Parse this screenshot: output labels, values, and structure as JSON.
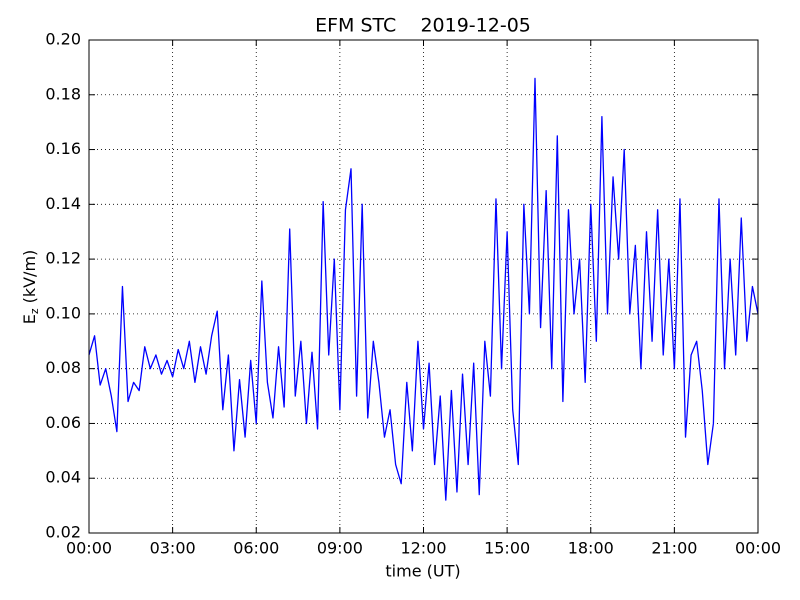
{
  "chart_data": {
    "type": "line",
    "title": "EFM STC    2019-12-05",
    "xlabel": "time (UT)",
    "ylabel": {
      "base": "E",
      "sub": "z",
      "unit": "(kV/m)"
    },
    "grid": true,
    "series": [
      {
        "color": "#0000ff",
        "x": [
          0.0,
          0.2,
          0.4,
          0.6,
          0.8,
          1.0,
          1.2,
          1.4,
          1.6,
          1.8,
          2.0,
          2.2,
          2.4,
          2.6,
          2.8,
          3.0,
          3.2,
          3.4,
          3.6,
          3.8,
          4.0,
          4.2,
          4.4,
          4.6,
          4.8,
          5.0,
          5.2,
          5.4,
          5.6,
          5.8,
          6.0,
          6.2,
          6.4,
          6.6,
          6.8,
          7.0,
          7.2,
          7.4,
          7.6,
          7.8,
          8.0,
          8.2,
          8.4,
          8.6,
          8.8,
          9.0,
          9.2,
          9.4,
          9.6,
          9.8,
          10.0,
          10.2,
          10.4,
          10.6,
          10.8,
          11.0,
          11.2,
          11.4,
          11.6,
          11.8,
          12.0,
          12.2,
          12.4,
          12.6,
          12.8,
          13.0,
          13.2,
          13.4,
          13.6,
          13.8,
          14.0,
          14.2,
          14.4,
          14.6,
          14.8,
          15.0,
          15.2,
          15.4,
          15.6,
          15.8,
          16.0,
          16.2,
          16.4,
          16.6,
          16.8,
          17.0,
          17.2,
          17.4,
          17.6,
          17.8,
          18.0,
          18.2,
          18.4,
          18.6,
          18.8,
          19.0,
          19.2,
          19.4,
          19.6,
          19.8,
          20.0,
          20.2,
          20.4,
          20.6,
          20.8,
          21.0,
          21.2,
          21.4,
          21.6,
          21.8,
          22.0,
          22.2,
          22.4,
          22.6,
          22.8,
          23.0,
          23.2,
          23.4,
          23.6,
          23.8,
          24.0
        ],
        "values": [
          0.085,
          0.092,
          0.074,
          0.08,
          0.07,
          0.057,
          0.11,
          0.068,
          0.075,
          0.072,
          0.088,
          0.08,
          0.085,
          0.078,
          0.083,
          0.077,
          0.087,
          0.08,
          0.09,
          0.075,
          0.088,
          0.078,
          0.092,
          0.101,
          0.065,
          0.085,
          0.05,
          0.076,
          0.055,
          0.083,
          0.06,
          0.112,
          0.075,
          0.062,
          0.088,
          0.066,
          0.131,
          0.07,
          0.09,
          0.06,
          0.086,
          0.058,
          0.141,
          0.085,
          0.12,
          0.065,
          0.138,
          0.153,
          0.07,
          0.14,
          0.062,
          0.09,
          0.075,
          0.055,
          0.065,
          0.045,
          0.038,
          0.075,
          0.05,
          0.09,
          0.058,
          0.082,
          0.045,
          0.07,
          0.032,
          0.072,
          0.035,
          0.078,
          0.045,
          0.082,
          0.034,
          0.09,
          0.07,
          0.142,
          0.08,
          0.13,
          0.065,
          0.045,
          0.14,
          0.1,
          0.186,
          0.095,
          0.145,
          0.08,
          0.165,
          0.068,
          0.138,
          0.1,
          0.12,
          0.075,
          0.14,
          0.09,
          0.172,
          0.1,
          0.15,
          0.12,
          0.16,
          0.1,
          0.125,
          0.08,
          0.13,
          0.09,
          0.138,
          0.085,
          0.12,
          0.08,
          0.142,
          0.055,
          0.085,
          0.09,
          0.072,
          0.045,
          0.06,
          0.142,
          0.08,
          0.12,
          0.085,
          0.135,
          0.09,
          0.11,
          0.1
        ]
      }
    ],
    "xlim": [
      0,
      24
    ],
    "xticks": [
      {
        "value": 0,
        "label": "00:00"
      },
      {
        "value": 3,
        "label": "03:00"
      },
      {
        "value": 6,
        "label": "06:00"
      },
      {
        "value": 9,
        "label": "09:00"
      },
      {
        "value": 12,
        "label": "12:00"
      },
      {
        "value": 15,
        "label": "15:00"
      },
      {
        "value": 18,
        "label": "18:00"
      },
      {
        "value": 21,
        "label": "21:00"
      },
      {
        "value": 24,
        "label": "00:00"
      }
    ],
    "ylim": [
      0.02,
      0.2
    ],
    "yticks": [
      0.02,
      0.04,
      0.06,
      0.08,
      {
        "value": 0.1,
        "label": "0.10"
      },
      0.12,
      0.14,
      0.16,
      0.18,
      {
        "value": 0.2,
        "label": "0.20"
      }
    ]
  }
}
